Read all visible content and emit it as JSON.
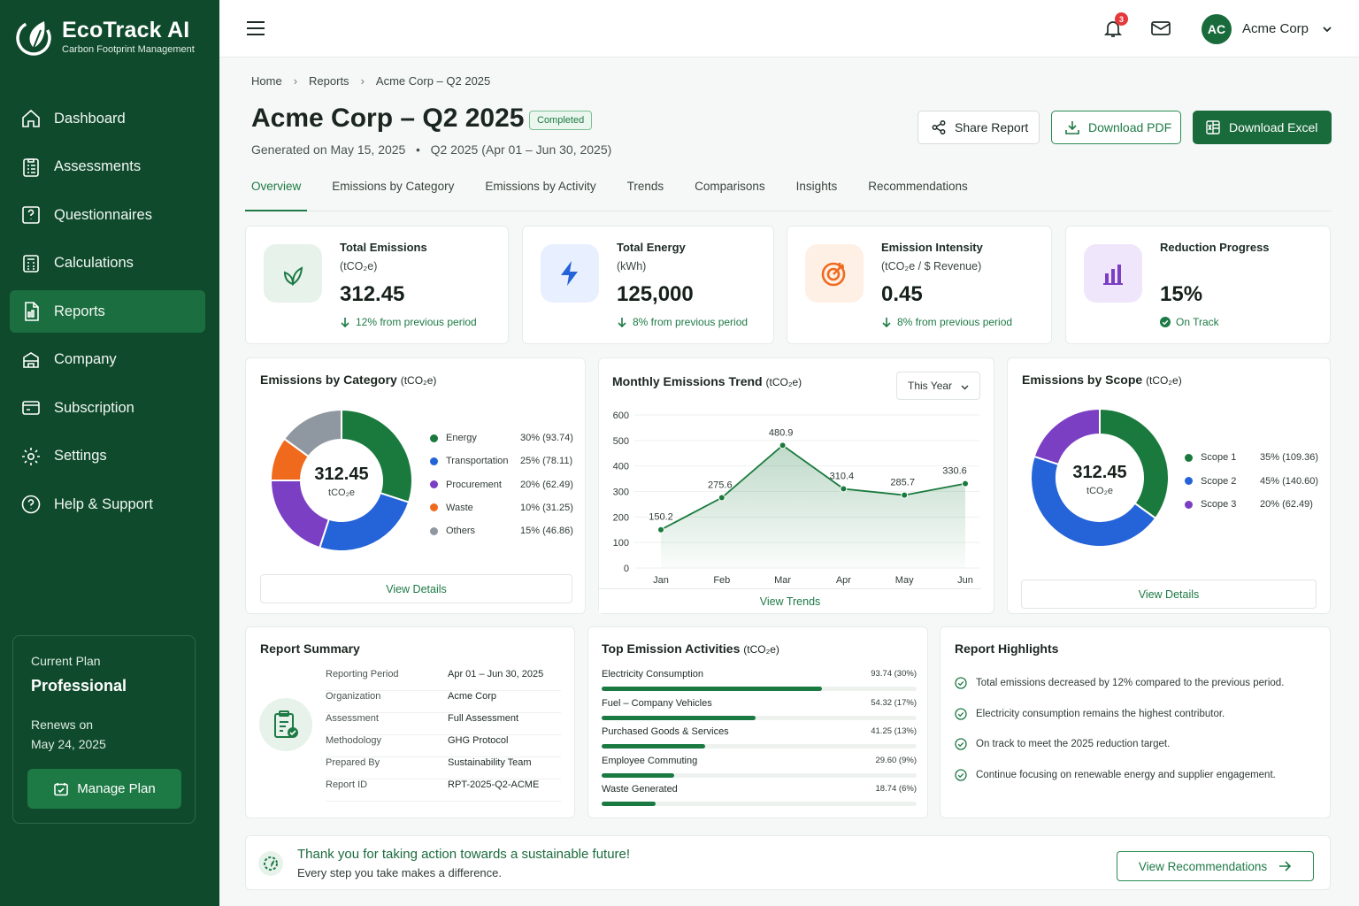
{
  "app": {
    "name": "EcoTrack AI",
    "tagline": "Carbon Footprint Management"
  },
  "colors": {
    "brand_dark": "#0f4a2c",
    "brand": "#1a6b3c",
    "accent": "#1d7a45"
  },
  "sidebar": {
    "items": [
      {
        "label": "Dashboard",
        "icon": "home-icon",
        "active": false
      },
      {
        "label": "Assessments",
        "icon": "clipboard-list-icon",
        "active": false
      },
      {
        "label": "Questionnaires",
        "icon": "question-square-icon",
        "active": false
      },
      {
        "label": "Calculations",
        "icon": "calculator-icon",
        "active": false
      },
      {
        "label": "Reports",
        "icon": "report-icon",
        "active": true
      },
      {
        "label": "Company",
        "icon": "building-icon",
        "active": false
      },
      {
        "label": "Subscription",
        "icon": "card-icon",
        "active": false
      },
      {
        "label": "Settings",
        "icon": "gear-icon",
        "active": false
      },
      {
        "label": "Help & Support",
        "icon": "help-circle-icon",
        "active": false
      }
    ],
    "plan": {
      "label": "Current Plan",
      "name": "Professional",
      "renews_label": "Renews on",
      "renews_date": "May 24, 2025",
      "button": "Manage Plan"
    }
  },
  "topbar": {
    "notification_count": "3",
    "avatar_initials": "AC",
    "account_name": "Acme Corp"
  },
  "breadcrumb": [
    "Home",
    "Reports",
    "Acme Corp – Q2 2025"
  ],
  "page": {
    "title": "Acme Corp – Q2 2025",
    "status": "Completed",
    "generated": "Generated on May 15, 2025",
    "period": "Q2 2025 (Apr 01 – Jun 30, 2025)",
    "actions": {
      "share": "Share Report",
      "pdf": "Download PDF",
      "excel": "Download Excel"
    }
  },
  "tabs": [
    "Overview",
    "Emissions by Category",
    "Emissions by Activity",
    "Trends",
    "Comparisons",
    "Insights",
    "Recommendations"
  ],
  "kpis": [
    {
      "title": "Total Emissions",
      "unit": "(tCO₂e)",
      "value": "312.45",
      "delta": "12% from previous period",
      "icon": "leaf-icon"
    },
    {
      "title": "Total Energy",
      "unit": "(kWh)",
      "value": "125,000",
      "delta": "8% from previous period",
      "icon": "lightning-icon"
    },
    {
      "title": "Emission Intensity",
      "unit": "(tCO₂e / $ Revenue)",
      "value": "0.45",
      "delta": "8% from previous period",
      "icon": "target-icon"
    },
    {
      "title": "Reduction Progress",
      "unit": "",
      "value": "15%",
      "delta": "On Track",
      "icon": "bar-chart-icon"
    }
  ],
  "category_card": {
    "title": "Emissions by Category",
    "unit": "(tCO₂e)",
    "center_value": "312.45",
    "center_unit": "tCO₂e",
    "button": "View Details"
  },
  "trend_card": {
    "title": "Monthly Emissions Trend",
    "unit": "(tCO₂e)",
    "select": "This Year",
    "button": "View Trends"
  },
  "scope_card": {
    "title": "Emissions by Scope",
    "unit": "(tCO₂e)",
    "center_value": "312.45",
    "center_unit": "tCO₂e",
    "button": "View Details"
  },
  "chart_data": [
    {
      "type": "pie",
      "title": "Emissions by Category",
      "categories": [
        "Energy",
        "Transportation",
        "Procurement",
        "Waste",
        "Others"
      ],
      "values": [
        93.74,
        78.11,
        62.49,
        31.25,
        46.86
      ],
      "labels": [
        "30% (93.74)",
        "25% (78.11)",
        "20% (62.49)",
        "10% (31.25)",
        "15% (46.86)"
      ],
      "colors": [
        "#1a7a3e",
        "#2563d8",
        "#7b3fc4",
        "#f06a1d",
        "#8f98a0"
      ]
    },
    {
      "type": "line",
      "title": "Monthly Emissions Trend",
      "categories": [
        "Jan",
        "Feb",
        "Mar",
        "Apr",
        "May",
        "Jun"
      ],
      "values": [
        150.2,
        275.6,
        480.9,
        310.4,
        285.7,
        330.6
      ],
      "ylim": [
        0,
        600
      ],
      "yticks": [
        0,
        100,
        200,
        300,
        400,
        500,
        600
      ],
      "grid": true,
      "color": "#1a7a3e"
    },
    {
      "type": "pie",
      "title": "Emissions by Scope",
      "categories": [
        "Scope 1",
        "Scope 2",
        "Scope 3"
      ],
      "values": [
        109.36,
        140.6,
        62.49
      ],
      "labels": [
        "35% (109.36)",
        "45% (140.60)",
        "20% (62.49)"
      ],
      "colors": [
        "#1a7a3e",
        "#2563d8",
        "#7b3fc4"
      ]
    }
  ],
  "summary": {
    "title": "Report Summary",
    "rows": [
      {
        "k": "Reporting Period",
        "v": "Apr 01 – Jun 30, 2025"
      },
      {
        "k": "Organization",
        "v": "Acme Corp"
      },
      {
        "k": "Assessment",
        "v": "Full Assessment"
      },
      {
        "k": "Methodology",
        "v": "GHG Protocol"
      },
      {
        "k": "Prepared By",
        "v": "Sustainability Team"
      },
      {
        "k": "Report ID",
        "v": "RPT-2025-Q2-ACME"
      }
    ]
  },
  "activities": {
    "title": "Top Emission Activities",
    "unit": "(tCO₂e)",
    "items": [
      {
        "label": "Electricity Consumption",
        "value": "93.74 (30%)",
        "share": 0.7
      },
      {
        "label": "Fuel – Company Vehicles",
        "value": "54.32 (17%)",
        "share": 0.49
      },
      {
        "label": "Purchased Goods & Services",
        "value": "41.25 (13%)",
        "share": 0.33
      },
      {
        "label": "Employee Commuting",
        "value": "29.60 (9%)",
        "share": 0.23
      },
      {
        "label": "Waste Generated",
        "value": "18.74 (6%)",
        "share": 0.17
      }
    ]
  },
  "highlights": {
    "title": "Report Highlights",
    "items": [
      "Total emissions decreased by 12% compared to the previous period.",
      "Electricity consumption remains the highest contributor.",
      "On track to meet the 2025 reduction target.",
      "Continue focusing on renewable energy and supplier engagement."
    ]
  },
  "banner": {
    "title": "Thank you for taking action towards a sustainable future!",
    "subtitle": "Every step you take makes a difference.",
    "button": "View Recommendations"
  }
}
